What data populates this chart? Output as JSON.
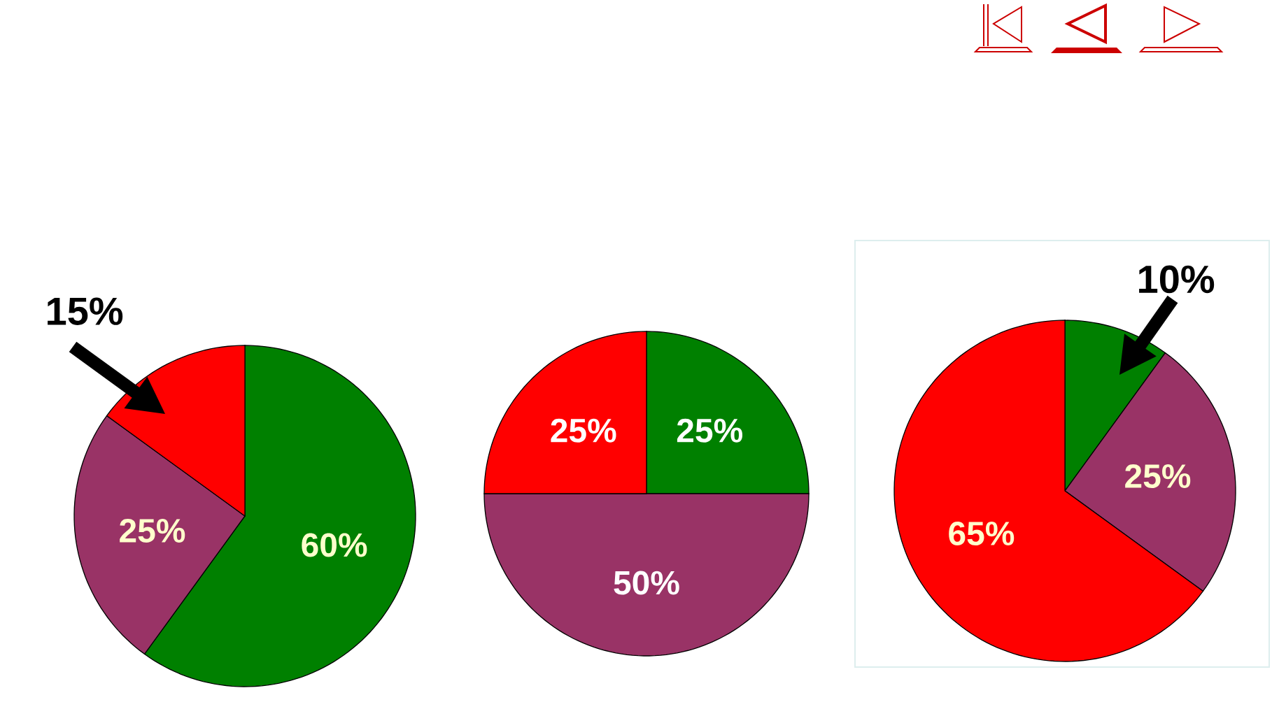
{
  "chart_data": [
    {
      "type": "pie",
      "categories": [
        null,
        null,
        null
      ],
      "values": [
        60,
        25,
        15
      ],
      "colors": [
        "#008000",
        "#993366",
        "#ff0000"
      ],
      "value_labels": [
        "60%",
        "25%",
        "15%"
      ]
    },
    {
      "type": "pie",
      "categories": [
        null,
        null,
        null
      ],
      "values": [
        25,
        50,
        25
      ],
      "colors": [
        "#008000",
        "#993366",
        "#ff0000"
      ],
      "value_labels": [
        "25%",
        "50%",
        "25%"
      ]
    },
    {
      "type": "pie",
      "categories": [
        null,
        null,
        null
      ],
      "values": [
        10,
        25,
        65
      ],
      "colors": [
        "#008000",
        "#993366",
        "#ff0000"
      ],
      "value_labels": [
        "10%",
        "25%",
        "65%"
      ]
    }
  ]
}
